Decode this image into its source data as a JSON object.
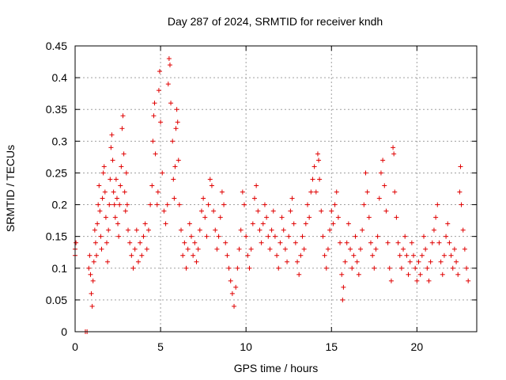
{
  "chart_data": {
    "type": "scatter",
    "title": "Day 287 of 2024, SRMTID for receiver kndh",
    "xlabel": "GPS time / hours",
    "ylabel": "SRMTID / TECUs",
    "xlim": [
      0,
      23.5
    ],
    "ylim": [
      0,
      0.45
    ],
    "xticks": [
      0,
      5,
      10,
      15,
      20
    ],
    "xtick_labels": [
      "0",
      "5",
      "10",
      "15",
      "20"
    ],
    "yticks": [
      0,
      0.05,
      0.1,
      0.15,
      0.2,
      0.25,
      0.3,
      0.35,
      0.4,
      0.45
    ],
    "ytick_labels": [
      "0",
      "0.05",
      "0.1",
      "0.15",
      "0.2",
      "0.25",
      "0.3",
      "0.35",
      "0.4",
      "0.45"
    ],
    "grid": true,
    "marker": "+",
    "marker_color": "#e00000",
    "series": [
      {
        "name": "SRMTID",
        "points": [
          [
            0.0,
            0.13
          ],
          [
            0.0,
            0.12
          ],
          [
            0.05,
            0.14
          ],
          [
            0.6,
            0.0
          ],
          [
            0.7,
            0.0
          ],
          [
            0.8,
            0.1
          ],
          [
            0.85,
            0.12
          ],
          [
            0.9,
            0.09
          ],
          [
            0.95,
            0.06
          ],
          [
            1.0,
            0.04
          ],
          [
            1.05,
            0.08
          ],
          [
            1.1,
            0.11
          ],
          [
            1.15,
            0.16
          ],
          [
            1.2,
            0.14
          ],
          [
            1.25,
            0.12
          ],
          [
            1.3,
            0.17
          ],
          [
            1.35,
            0.2
          ],
          [
            1.4,
            0.23
          ],
          [
            1.45,
            0.19
          ],
          [
            1.5,
            0.15
          ],
          [
            1.55,
            0.13
          ],
          [
            1.6,
            0.21
          ],
          [
            1.65,
            0.25
          ],
          [
            1.7,
            0.26
          ],
          [
            1.75,
            0.22
          ],
          [
            1.8,
            0.18
          ],
          [
            1.85,
            0.14
          ],
          [
            1.9,
            0.11
          ],
          [
            1.95,
            0.16
          ],
          [
            2.0,
            0.2
          ],
          [
            2.05,
            0.24
          ],
          [
            2.1,
            0.29
          ],
          [
            2.15,
            0.31
          ],
          [
            2.2,
            0.27
          ],
          [
            2.25,
            0.22
          ],
          [
            2.3,
            0.2
          ],
          [
            2.35,
            0.18
          ],
          [
            2.4,
            0.24
          ],
          [
            2.45,
            0.21
          ],
          [
            2.5,
            0.17
          ],
          [
            2.55,
            0.15
          ],
          [
            2.6,
            0.2
          ],
          [
            2.65,
            0.23
          ],
          [
            2.7,
            0.26
          ],
          [
            2.75,
            0.32
          ],
          [
            2.8,
            0.34
          ],
          [
            2.85,
            0.28
          ],
          [
            2.9,
            0.22
          ],
          [
            2.95,
            0.19
          ],
          [
            3.0,
            0.25
          ],
          [
            3.05,
            0.2
          ],
          [
            3.1,
            0.16
          ],
          [
            3.2,
            0.14
          ],
          [
            3.3,
            0.12
          ],
          [
            3.4,
            0.1
          ],
          [
            3.5,
            0.13
          ],
          [
            3.6,
            0.16
          ],
          [
            3.7,
            0.11
          ],
          [
            3.8,
            0.14
          ],
          [
            3.9,
            0.12
          ],
          [
            4.0,
            0.15
          ],
          [
            4.1,
            0.17
          ],
          [
            4.2,
            0.13
          ],
          [
            4.3,
            0.16
          ],
          [
            4.4,
            0.2
          ],
          [
            4.5,
            0.23
          ],
          [
            4.55,
            0.3
          ],
          [
            4.6,
            0.34
          ],
          [
            4.65,
            0.36
          ],
          [
            4.7,
            0.28
          ],
          [
            4.8,
            0.2
          ],
          [
            4.85,
            0.22
          ],
          [
            4.9,
            0.38
          ],
          [
            4.95,
            0.41
          ],
          [
            5.0,
            0.33
          ],
          [
            5.1,
            0.25
          ],
          [
            5.2,
            0.19
          ],
          [
            5.3,
            0.17
          ],
          [
            5.4,
            0.2
          ],
          [
            5.45,
            0.39
          ],
          [
            5.5,
            0.43
          ],
          [
            5.55,
            0.42
          ],
          [
            5.6,
            0.36
          ],
          [
            5.7,
            0.3
          ],
          [
            5.75,
            0.24
          ],
          [
            5.8,
            0.21
          ],
          [
            5.85,
            0.26
          ],
          [
            5.9,
            0.32
          ],
          [
            5.95,
            0.35
          ],
          [
            6.0,
            0.33
          ],
          [
            6.05,
            0.27
          ],
          [
            6.1,
            0.2
          ],
          [
            6.2,
            0.16
          ],
          [
            6.3,
            0.12
          ],
          [
            6.4,
            0.14
          ],
          [
            6.5,
            0.1
          ],
          [
            6.6,
            0.13
          ],
          [
            6.7,
            0.17
          ],
          [
            6.8,
            0.15
          ],
          [
            6.9,
            0.12
          ],
          [
            7.0,
            0.14
          ],
          [
            7.1,
            0.11
          ],
          [
            7.2,
            0.13
          ],
          [
            7.3,
            0.16
          ],
          [
            7.4,
            0.19
          ],
          [
            7.5,
            0.21
          ],
          [
            7.6,
            0.18
          ],
          [
            7.7,
            0.15
          ],
          [
            7.8,
            0.2
          ],
          [
            7.9,
            0.24
          ],
          [
            8.0,
            0.23
          ],
          [
            8.1,
            0.19
          ],
          [
            8.2,
            0.16
          ],
          [
            8.3,
            0.13
          ],
          [
            8.4,
            0.15
          ],
          [
            8.5,
            0.18
          ],
          [
            8.6,
            0.22
          ],
          [
            8.7,
            0.2
          ],
          [
            8.8,
            0.14
          ],
          [
            8.9,
            0.12
          ],
          [
            9.0,
            0.1
          ],
          [
            9.1,
            0.08
          ],
          [
            9.2,
            0.06
          ],
          [
            9.3,
            0.04
          ],
          [
            9.4,
            0.07
          ],
          [
            9.5,
            0.1
          ],
          [
            9.6,
            0.13
          ],
          [
            9.7,
            0.16
          ],
          [
            9.8,
            0.22
          ],
          [
            9.9,
            0.2
          ],
          [
            10.0,
            0.15
          ],
          [
            10.1,
            0.12
          ],
          [
            10.2,
            0.1
          ],
          [
            10.3,
            0.13
          ],
          [
            10.4,
            0.17
          ],
          [
            10.5,
            0.21
          ],
          [
            10.6,
            0.23
          ],
          [
            10.7,
            0.19
          ],
          [
            10.8,
            0.16
          ],
          [
            10.9,
            0.14
          ],
          [
            11.0,
            0.17
          ],
          [
            11.1,
            0.2
          ],
          [
            11.2,
            0.18
          ],
          [
            11.3,
            0.15
          ],
          [
            11.4,
            0.13
          ],
          [
            11.5,
            0.16
          ],
          [
            11.6,
            0.19
          ],
          [
            11.7,
            0.15
          ],
          [
            11.8,
            0.12
          ],
          [
            11.9,
            0.1
          ],
          [
            12.0,
            0.14
          ],
          [
            12.1,
            0.18
          ],
          [
            12.2,
            0.16
          ],
          [
            12.3,
            0.13
          ],
          [
            12.4,
            0.11
          ],
          [
            12.5,
            0.15
          ],
          [
            12.6,
            0.19
          ],
          [
            12.7,
            0.21
          ],
          [
            12.8,
            0.17
          ],
          [
            12.9,
            0.14
          ],
          [
            13.0,
            0.11
          ],
          [
            13.1,
            0.09
          ],
          [
            13.2,
            0.12
          ],
          [
            13.3,
            0.15
          ],
          [
            13.4,
            0.13
          ],
          [
            13.5,
            0.17
          ],
          [
            13.6,
            0.2
          ],
          [
            13.7,
            0.18
          ],
          [
            13.8,
            0.22
          ],
          [
            13.9,
            0.24
          ],
          [
            14.0,
            0.26
          ],
          [
            14.1,
            0.22
          ],
          [
            14.2,
            0.28
          ],
          [
            14.25,
            0.27
          ],
          [
            14.3,
            0.24
          ],
          [
            14.4,
            0.19
          ],
          [
            14.5,
            0.15
          ],
          [
            14.6,
            0.12
          ],
          [
            14.7,
            0.1
          ],
          [
            14.8,
            0.13
          ],
          [
            14.9,
            0.16
          ],
          [
            15.0,
            0.19
          ],
          [
            15.1,
            0.17
          ],
          [
            15.2,
            0.2
          ],
          [
            15.3,
            0.22
          ],
          [
            15.4,
            0.18
          ],
          [
            15.5,
            0.14
          ],
          [
            15.6,
            0.09
          ],
          [
            15.65,
            0.05
          ],
          [
            15.7,
            0.07
          ],
          [
            15.8,
            0.11
          ],
          [
            15.9,
            0.14
          ],
          [
            16.0,
            0.17
          ],
          [
            16.1,
            0.13
          ],
          [
            16.2,
            0.1
          ],
          [
            16.3,
            0.12
          ],
          [
            16.4,
            0.15
          ],
          [
            16.5,
            0.11
          ],
          [
            16.6,
            0.09
          ],
          [
            16.7,
            0.13
          ],
          [
            16.8,
            0.16
          ],
          [
            16.9,
            0.2
          ],
          [
            17.0,
            0.25
          ],
          [
            17.1,
            0.22
          ],
          [
            17.2,
            0.18
          ],
          [
            17.3,
            0.14
          ],
          [
            17.4,
            0.12
          ],
          [
            17.5,
            0.1
          ],
          [
            17.6,
            0.13
          ],
          [
            17.7,
            0.15
          ],
          [
            17.8,
            0.21
          ],
          [
            17.9,
            0.25
          ],
          [
            18.0,
            0.27
          ],
          [
            18.1,
            0.23
          ],
          [
            18.2,
            0.19
          ],
          [
            18.3,
            0.14
          ],
          [
            18.4,
            0.1
          ],
          [
            18.5,
            0.08
          ],
          [
            18.6,
            0.29
          ],
          [
            18.65,
            0.28
          ],
          [
            18.7,
            0.22
          ],
          [
            18.8,
            0.18
          ],
          [
            18.9,
            0.14
          ],
          [
            19.0,
            0.12
          ],
          [
            19.1,
            0.1
          ],
          [
            19.2,
            0.13
          ],
          [
            19.3,
            0.15
          ],
          [
            19.4,
            0.12
          ],
          [
            19.5,
            0.09
          ],
          [
            19.6,
            0.11
          ],
          [
            19.7,
            0.14
          ],
          [
            19.8,
            0.12
          ],
          [
            19.9,
            0.1
          ],
          [
            20.0,
            0.08
          ],
          [
            20.1,
            0.11
          ],
          [
            20.2,
            0.09
          ],
          [
            20.3,
            0.12
          ],
          [
            20.4,
            0.15
          ],
          [
            20.5,
            0.13
          ],
          [
            20.6,
            0.1
          ],
          [
            20.7,
            0.08
          ],
          [
            20.8,
            0.11
          ],
          [
            20.9,
            0.14
          ],
          [
            21.0,
            0.16
          ],
          [
            21.1,
            0.18
          ],
          [
            21.2,
            0.2
          ],
          [
            21.3,
            0.14
          ],
          [
            21.4,
            0.11
          ],
          [
            21.5,
            0.09
          ],
          [
            21.6,
            0.12
          ],
          [
            21.7,
            0.15
          ],
          [
            21.8,
            0.17
          ],
          [
            21.9,
            0.14
          ],
          [
            22.0,
            0.12
          ],
          [
            22.1,
            0.1
          ],
          [
            22.2,
            0.13
          ],
          [
            22.3,
            0.11
          ],
          [
            22.4,
            0.09
          ],
          [
            22.5,
            0.22
          ],
          [
            22.55,
            0.26
          ],
          [
            22.6,
            0.2
          ],
          [
            22.7,
            0.16
          ],
          [
            22.8,
            0.13
          ],
          [
            22.9,
            0.1
          ],
          [
            23.0,
            0.08
          ]
        ]
      }
    ]
  }
}
